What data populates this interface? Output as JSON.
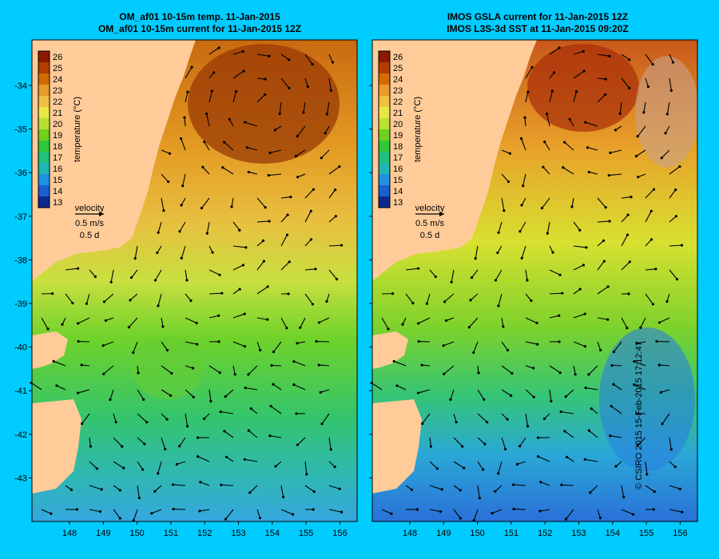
{
  "left_panel": {
    "title_line1": "OM_af01 10-15m temp. 11-Jan-2015",
    "title_line2": "OM_af01 10-15m current for 11-Jan-2015 12Z"
  },
  "right_panel": {
    "title_line1": "IMOS GSLA current for 11-Jan-2015 12Z",
    "title_line2": "IMOS L3S-3d SST at 11-Jan-2015 09:20Z"
  },
  "colorbar": {
    "label": "temperature (°C)",
    "ticks": [
      "26",
      "25",
      "24",
      "23",
      "22",
      "21",
      "20",
      "19",
      "18",
      "17",
      "16",
      "15",
      "14",
      "13"
    ],
    "colors": [
      "#8b1a00",
      "#b33d00",
      "#d46a00",
      "#e89a2a",
      "#f0c040",
      "#e8e845",
      "#b8e030",
      "#70d01e",
      "#2fc83a",
      "#1ec07a",
      "#20b6b0",
      "#2090e0",
      "#1a5fd0",
      "#0c2a8c"
    ]
  },
  "legend": {
    "label": "velocity",
    "speed": "0.5 m/s",
    "time": "0.5 d"
  },
  "axes": {
    "y_ticks": [
      "-34",
      "-35",
      "-36",
      "-37",
      "-38",
      "-39",
      "-40",
      "-41",
      "-42",
      "-43"
    ],
    "x_ticks": [
      "148",
      "149",
      "150",
      "151",
      "152",
      "153",
      "154",
      "155",
      "156"
    ]
  },
  "credit": "© CSIRO 2015   15-Feb-2015 17:12:47",
  "colors": {
    "background": "#00ccff",
    "land": "#ffcc99"
  }
}
